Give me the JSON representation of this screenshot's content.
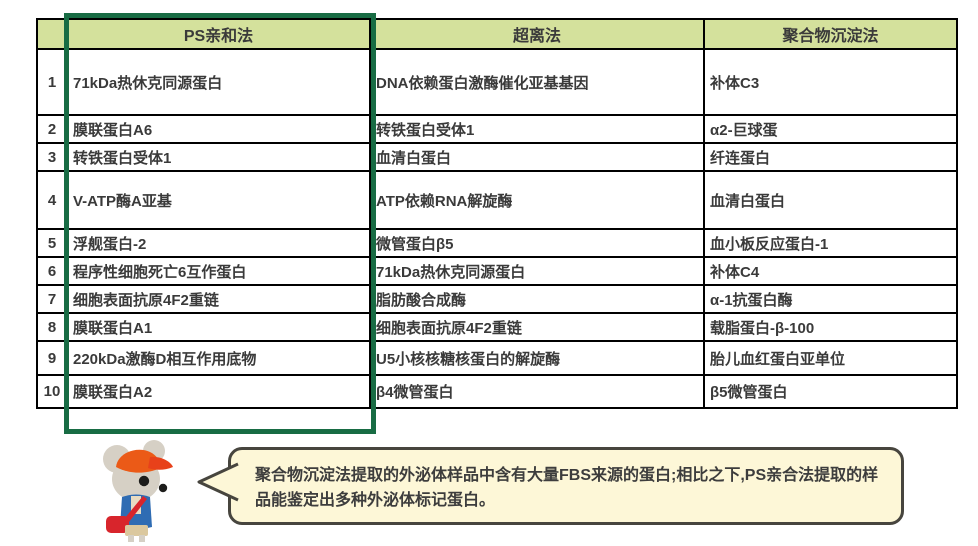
{
  "colors": {
    "header_bg": "#d4e19c",
    "gray_cell_bg": "#bfbfbf",
    "highlight_border_green": "#186c44",
    "marker_text_green": "#1c7a58",
    "ps_header_text_green": "#1e5c3a",
    "bubble_bg": "#fdf7d7",
    "bubble_border": "#47453e",
    "mascot_cap_orange": "#eb5a17",
    "mascot_jacket_blue": "#2f6cb3",
    "mascot_bag_red": "#d8262c"
  },
  "table": {
    "headers": [
      "PS亲和法",
      "超离法",
      "聚合物沉淀法"
    ],
    "rows": [
      {
        "num": "1",
        "cells": [
          {
            "text": "71kDa热休克同源蛋白",
            "gray": true,
            "green": false
          },
          {
            "text": "DNA依赖蛋白激酶催化亚基基因",
            "gray": false,
            "green": false
          },
          {
            "text": "补体C3",
            "gray": true,
            "green": false
          }
        ]
      },
      {
        "num": "2",
        "cells": [
          {
            "text": "膜联蛋白A6",
            "gray": false,
            "green": true
          },
          {
            "text": "转铁蛋白受体1",
            "gray": false,
            "green": false
          },
          {
            "text": "α2-巨球蛋",
            "gray": true,
            "green": false
          }
        ]
      },
      {
        "num": "3",
        "cells": [
          {
            "text": "转铁蛋白受体1",
            "gray": false,
            "green": false
          },
          {
            "text": "血清白蛋白",
            "gray": true,
            "green": false
          },
          {
            "text": "纤连蛋白",
            "gray": true,
            "green": false
          }
        ]
      },
      {
        "num": "4",
        "cells": [
          {
            "text": "V-ATP酶A亚基",
            "gray": false,
            "green": false
          },
          {
            "text": "ATP依赖RNA解旋酶",
            "gray": false,
            "green": false
          },
          {
            "text": "血清白蛋白",
            "gray": true,
            "green": false
          }
        ]
      },
      {
        "num": "5",
        "cells": [
          {
            "text": "浮舰蛋白-2",
            "gray": false,
            "green": true
          },
          {
            "text": "微管蛋白β5",
            "gray": true,
            "green": false
          },
          {
            "text": "血小板反应蛋白-1",
            "gray": true,
            "green": false
          }
        ]
      },
      {
        "num": "6",
        "cells": [
          {
            "text": "程序性细胞死亡6互作蛋白",
            "gray": false,
            "green": false
          },
          {
            "text": "71kDa热休克同源蛋白",
            "gray": true,
            "green": false
          },
          {
            "text": "补体C4",
            "gray": true,
            "green": false
          }
        ]
      },
      {
        "num": "7",
        "cells": [
          {
            "text": "细胞表面抗原4F2重链",
            "gray": false,
            "green": false
          },
          {
            "text": "脂肪酸合成酶",
            "gray": false,
            "green": false
          },
          {
            "text": "α-1抗蛋白酶",
            "gray": true,
            "green": false
          }
        ]
      },
      {
        "num": "8",
        "cells": [
          {
            "text": "膜联蛋白A1",
            "gray": false,
            "green": true
          },
          {
            "text": "细胞表面抗原4F2重链",
            "gray": false,
            "green": false
          },
          {
            "text": "载脂蛋白-β-100",
            "gray": false,
            "green": false
          }
        ]
      },
      {
        "num": "9",
        "cells": [
          {
            "text": "220kDa激酶D相互作用底物",
            "gray": false,
            "green": false
          },
          {
            "text": "U5小核核糖核蛋白的解旋酶",
            "gray": false,
            "green": false
          },
          {
            "text": "胎儿血红蛋白亚单位",
            "gray": true,
            "green": false
          }
        ]
      },
      {
        "num": "10",
        "cells": [
          {
            "text": "膜联蛋白A2",
            "gray": false,
            "green": true
          },
          {
            "text": "β4微管蛋白",
            "gray": true,
            "green": false
          },
          {
            "text": "β5微管蛋白",
            "gray": true,
            "green": false
          }
        ]
      }
    ]
  },
  "note": {
    "text": "聚合物沉淀法提取的外泌体样品中含有大量FBS来源的蛋白;相比之下,PS亲合法提取的样品能鉴定出多种外泌体标记蛋白。"
  },
  "mascot": {
    "icon": "mouse-mascot-icon"
  }
}
